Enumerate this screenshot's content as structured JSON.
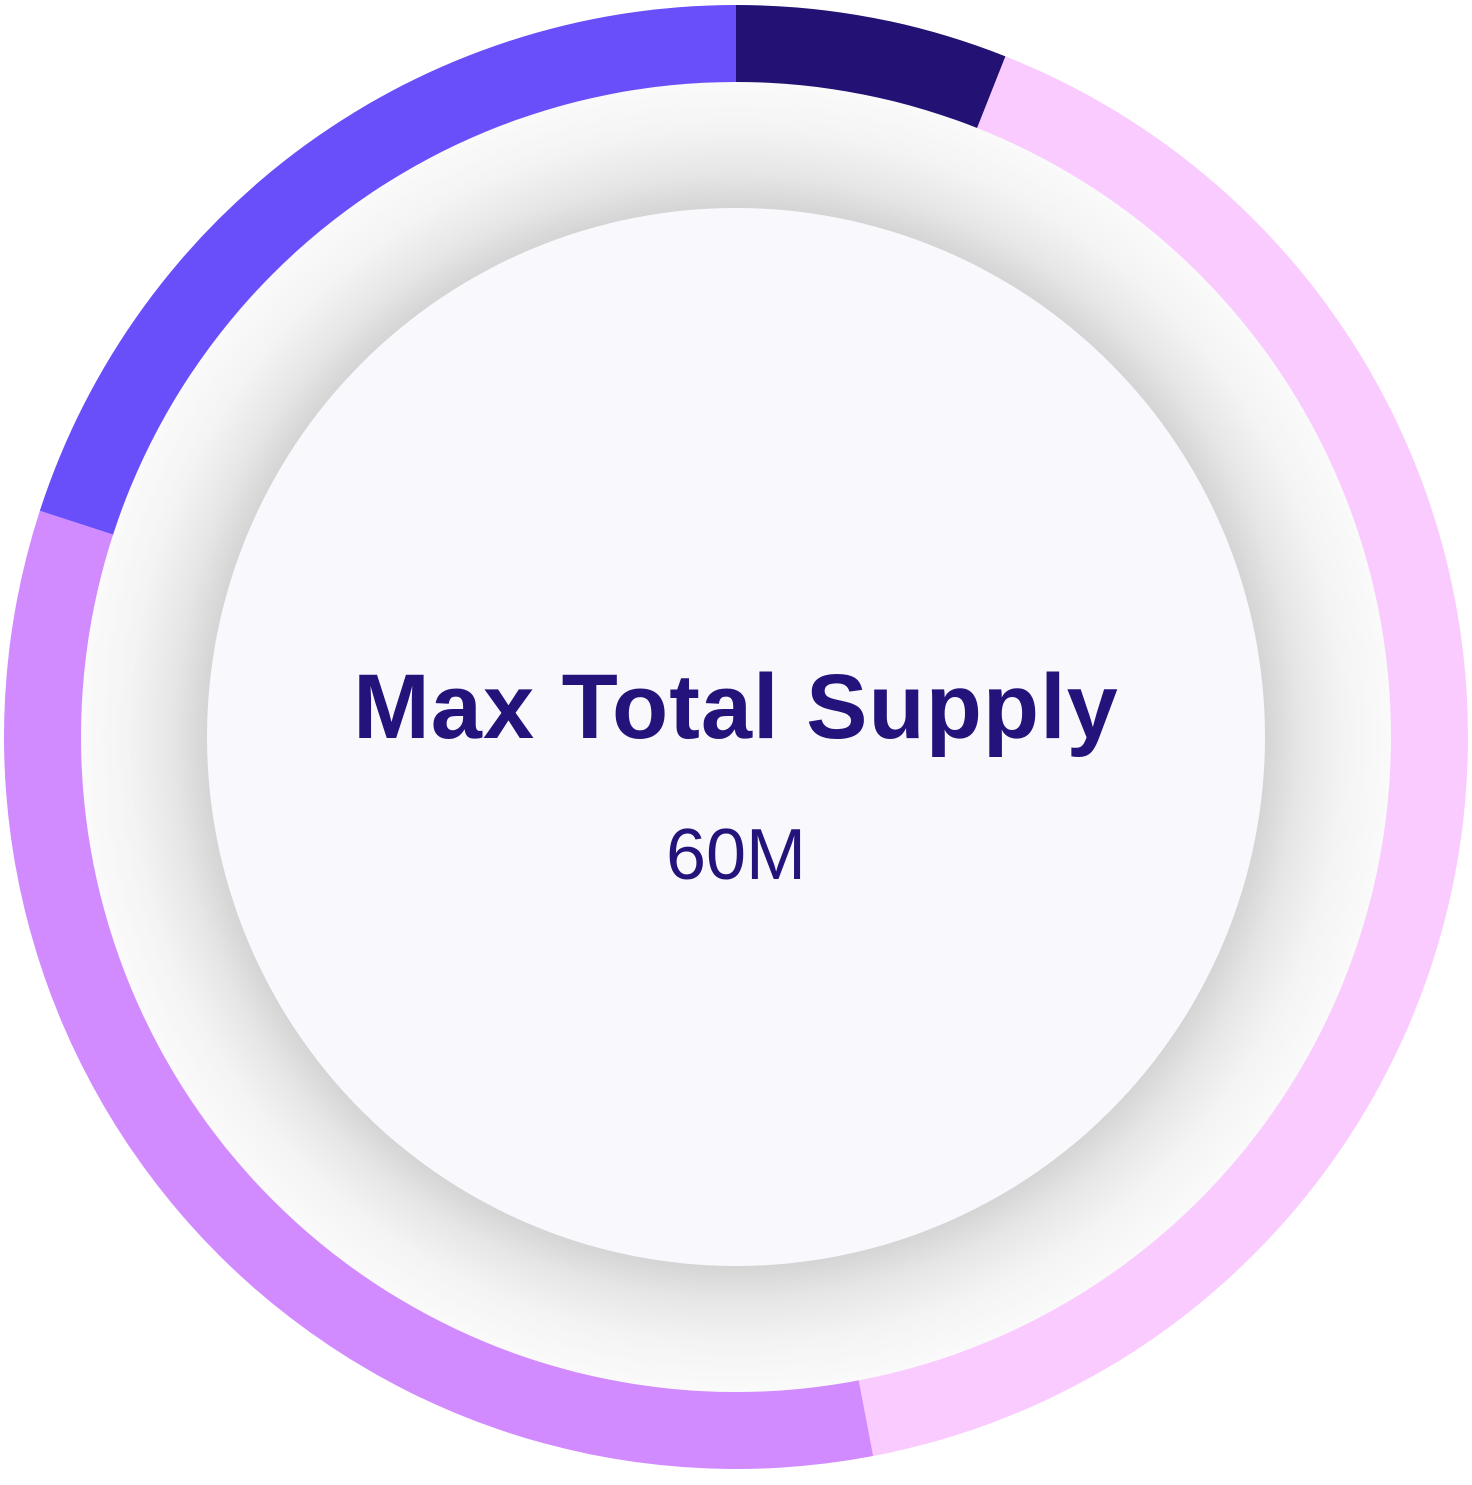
{
  "chart_data": {
    "type": "pie",
    "variant": "donut",
    "start": "top",
    "direction": "clockwise",
    "center": {
      "title": "Max Total Supply",
      "value": "60M"
    },
    "slices": [
      {
        "value": 6,
        "color": "#231174"
      },
      {
        "value": 41,
        "color": "#facbff"
      },
      {
        "value": 33,
        "color": "#d18bff"
      },
      {
        "value": 20,
        "color": "#684ffa"
      }
    ],
    "colors": {
      "text": "#24137a",
      "inner_disc": "#f9f8fd",
      "shadow_ring": "#dcdcdc"
    }
  }
}
